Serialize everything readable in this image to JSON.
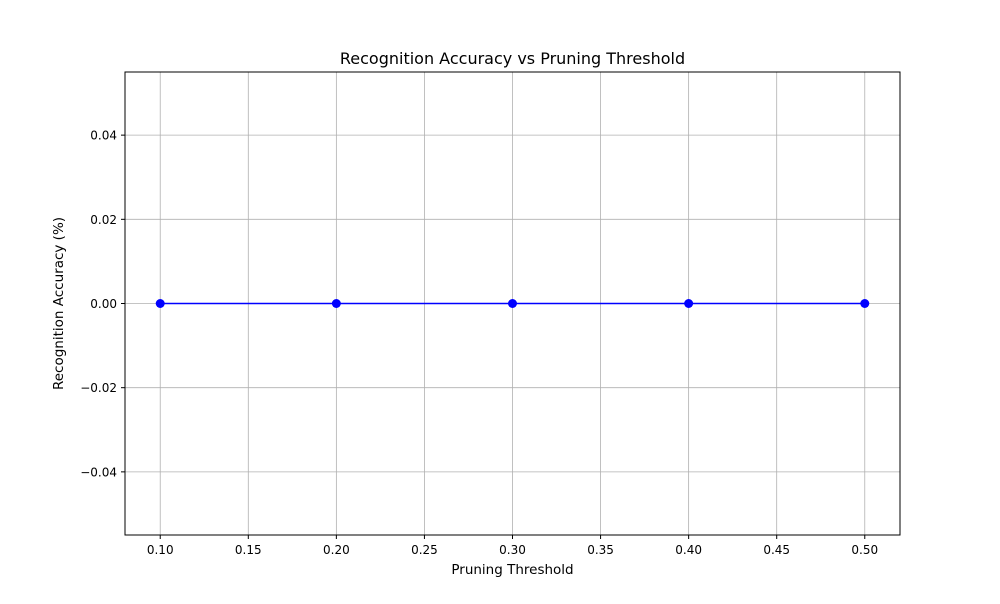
{
  "chart_data": {
    "type": "line",
    "title": "Recognition Accuracy vs Pruning Threshold",
    "xlabel": "Pruning Threshold",
    "ylabel": "Recognition Accuracy (%)",
    "x": [
      0.1,
      0.2,
      0.3,
      0.4,
      0.5
    ],
    "series": [
      {
        "values": [
          0.0,
          0.0,
          0.0,
          0.0,
          0.0
        ],
        "color": "#0000ff",
        "marker": "circle"
      }
    ],
    "xlim": [
      0.08,
      0.52
    ],
    "ylim": [
      -0.055,
      0.055
    ],
    "x_ticks": [
      0.1,
      0.15,
      0.2,
      0.25,
      0.3,
      0.35,
      0.4,
      0.45,
      0.5
    ],
    "x_tick_labels": [
      "0.10",
      "0.15",
      "0.20",
      "0.25",
      "0.30",
      "0.35",
      "0.40",
      "0.45",
      "0.50"
    ],
    "y_ticks": [
      -0.04,
      -0.02,
      0.0,
      0.02,
      0.04
    ],
    "y_tick_labels": [
      "−0.04",
      "−0.02",
      "0.00",
      "0.02",
      "0.04"
    ],
    "grid": true,
    "grid_color": "#b0b0b0",
    "legend": false
  }
}
